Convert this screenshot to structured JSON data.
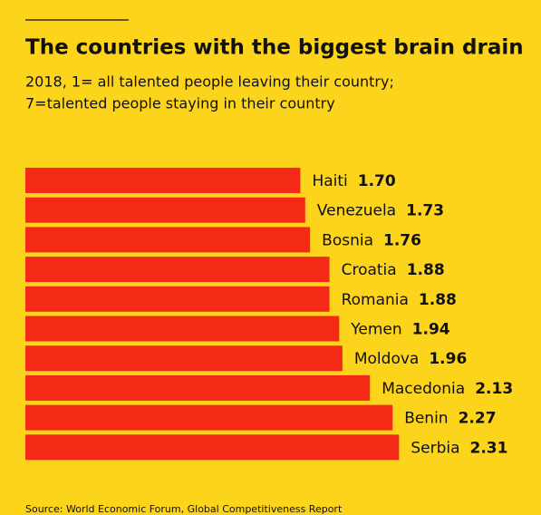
{
  "chart_data": {
    "type": "bar",
    "orientation": "horizontal",
    "title": "The countries with the biggest brain drain",
    "subtitle": [
      "2018, 1= all talented people leaving their country;",
      "7=talented people staying in their country"
    ],
    "source": "Source: World Economic Forum, Global Competitiveness Report",
    "categories": [
      "Haiti",
      "Venezuela",
      "Bosnia",
      "Croatia",
      "Romania",
      "Yemen",
      "Moldova",
      "Macedonia",
      "Benin",
      "Serbia"
    ],
    "values": [
      1.7,
      1.73,
      1.76,
      1.88,
      1.88,
      1.94,
      1.96,
      2.13,
      2.27,
      2.31
    ],
    "value_labels": [
      "1.70",
      "1.73",
      "1.76",
      "1.88",
      "1.88",
      "1.94",
      "1.96",
      "2.13",
      "2.27",
      "2.31"
    ],
    "color": "#f42a17"
  }
}
